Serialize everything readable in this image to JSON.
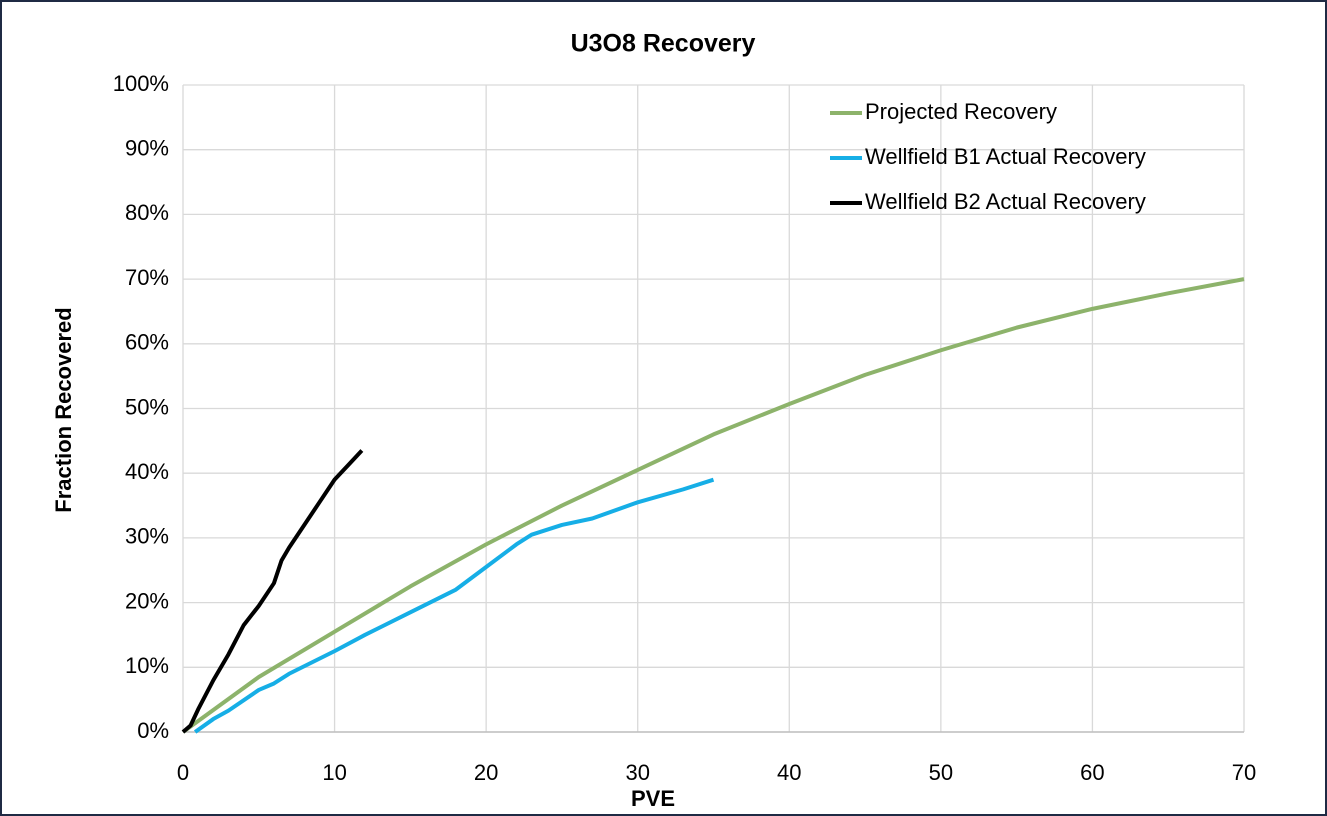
{
  "chart_data": {
    "type": "line",
    "title": "U3O8 Recovery",
    "x_label": "PVE",
    "y_label": "Fraction Recovered",
    "xlim": [
      0,
      70
    ],
    "xticks": [
      0,
      10,
      20,
      30,
      40,
      50,
      60,
      70
    ],
    "ylim": [
      0,
      100
    ],
    "yticks": [
      {
        "value": 0,
        "label": "0%"
      },
      {
        "value": 10,
        "label": "10%"
      },
      {
        "value": 20,
        "label": "20%"
      },
      {
        "value": 30,
        "label": "30%"
      },
      {
        "value": 40,
        "label": "40%"
      },
      {
        "value": 50,
        "label": "50%"
      },
      {
        "value": 60,
        "label": "60%"
      },
      {
        "value": 70,
        "label": "70%"
      },
      {
        "value": 80,
        "label": "80%"
      },
      {
        "value": 90,
        "label": "90%"
      },
      {
        "value": 100,
        "label": "100%"
      }
    ],
    "grid": true,
    "legend": "upper right",
    "series": [
      {
        "name": "Projected Recovery",
        "color": "#8db36b",
        "x": [
          0,
          5,
          10,
          15,
          20,
          25,
          30,
          35,
          40,
          45,
          50,
          55,
          60,
          65,
          70
        ],
        "values": [
          0,
          8.5,
          15.5,
          22.5,
          29,
          35,
          40.5,
          46,
          50.7,
          55.2,
          59,
          62.5,
          65.4,
          67.8,
          70
        ]
      },
      {
        "name": "Wellfield B1 Actual Recovery",
        "color": "#16aee6",
        "x": [
          0.8,
          2,
          3,
          5,
          6,
          7,
          10,
          12,
          15,
          18,
          20,
          22,
          23,
          25,
          27,
          30,
          33,
          35
        ],
        "values": [
          0,
          2,
          3.3,
          6.5,
          7.5,
          9,
          12.5,
          15,
          18.5,
          22,
          25.5,
          29,
          30.5,
          32,
          33,
          35.5,
          37.5,
          39
        ]
      },
      {
        "name": "Wellfield B2 Actual Recovery",
        "color": "#000000",
        "x": [
          0,
          0.5,
          1,
          2,
          3,
          4,
          5,
          6,
          6.5,
          7,
          8,
          9,
          10,
          11,
          11.8
        ],
        "values": [
          0,
          1,
          3.5,
          8,
          12,
          16.5,
          19.5,
          23,
          26.5,
          28.5,
          32,
          35.5,
          39,
          41.5,
          43.5
        ]
      }
    ]
  }
}
